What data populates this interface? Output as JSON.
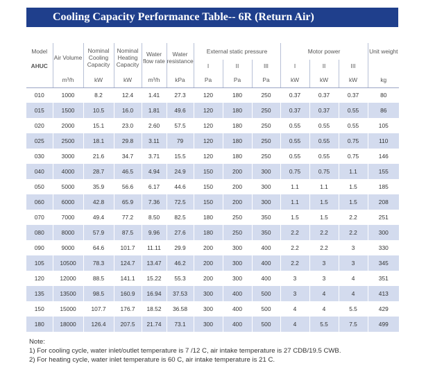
{
  "title": "Cooling Capacity Performance Table-- 6R (Return Air)",
  "header": {
    "model": "Model",
    "model_sub": "AHUC",
    "air_volume": "Air Volume",
    "air_volume_unit": "m³/h",
    "nominal_cooling": "Nominal Cooling Capacity",
    "nominal_cooling_unit": "kW",
    "nominal_heating": "Nominal Heating Capacity",
    "nominal_heating_unit": "kW",
    "water_flow": "Water flow rate",
    "water_flow_unit": "m³/h",
    "water_resistance": "Water resistance",
    "water_resistance_unit": "kPa",
    "esp": "External static pressure",
    "esp_levels": [
      "I",
      "II",
      "III"
    ],
    "esp_unit": "Pa",
    "motor": "Motor power",
    "motor_levels": [
      "I",
      "II",
      "III"
    ],
    "motor_unit": "kW",
    "weight": "Unit weight",
    "weight_unit": "kg"
  },
  "rows": [
    [
      "010",
      "1000",
      "8.2",
      "12.4",
      "1.41",
      "27.3",
      "120",
      "180",
      "250",
      "0.37",
      "0.37",
      "0.37",
      "80"
    ],
    [
      "015",
      "1500",
      "10.5",
      "16.0",
      "1.81",
      "49.6",
      "120",
      "180",
      "250",
      "0.37",
      "0.37",
      "0.55",
      "86"
    ],
    [
      "020",
      "2000",
      "15.1",
      "23.0",
      "2.60",
      "57.5",
      "120",
      "180",
      "250",
      "0.55",
      "0.55",
      "0.55",
      "105"
    ],
    [
      "025",
      "2500",
      "18.1",
      "29.8",
      "3.11",
      "79",
      "120",
      "180",
      "250",
      "0.55",
      "0.55",
      "0.75",
      "110"
    ],
    [
      "030",
      "3000",
      "21.6",
      "34.7",
      "3.71",
      "15.5",
      "120",
      "180",
      "250",
      "0.55",
      "0.55",
      "0.75",
      "146"
    ],
    [
      "040",
      "4000",
      "28.7",
      "46.5",
      "4.94",
      "24.9",
      "150",
      "200",
      "300",
      "0.75",
      "0.75",
      "1.1",
      "155"
    ],
    [
      "050",
      "5000",
      "35.9",
      "56.6",
      "6.17",
      "44.6",
      "150",
      "200",
      "300",
      "1.1",
      "1.1",
      "1.5",
      "185"
    ],
    [
      "060",
      "6000",
      "42.8",
      "65.9",
      "7.36",
      "72.5",
      "150",
      "200",
      "300",
      "1.1",
      "1.5",
      "1.5",
      "208"
    ],
    [
      "070",
      "7000",
      "49.4",
      "77.2",
      "8.50",
      "82.5",
      "180",
      "250",
      "350",
      "1.5",
      "1.5",
      "2.2",
      "251"
    ],
    [
      "080",
      "8000",
      "57.9",
      "87.5",
      "9.96",
      "27.6",
      "180",
      "250",
      "350",
      "2.2",
      "2.2",
      "2.2",
      "300"
    ],
    [
      "090",
      "9000",
      "64.6",
      "101.7",
      "11.11",
      "29.9",
      "200",
      "300",
      "400",
      "2.2",
      "2.2",
      "3",
      "330"
    ],
    [
      "105",
      "10500",
      "78.3",
      "124.7",
      "13.47",
      "46.2",
      "200",
      "300",
      "400",
      "2.2",
      "3",
      "3",
      "345"
    ],
    [
      "120",
      "12000",
      "88.5",
      "141.1",
      "15.22",
      "55.3",
      "200",
      "300",
      "400",
      "3",
      "3",
      "4",
      "351"
    ],
    [
      "135",
      "13500",
      "98.5",
      "160.9",
      "16.94",
      "37.53",
      "300",
      "400",
      "500",
      "3",
      "4",
      "4",
      "413"
    ],
    [
      "150",
      "15000",
      "107.7",
      "176.7",
      "18.52",
      "36.58",
      "300",
      "400",
      "500",
      "4",
      "4",
      "5.5",
      "429"
    ],
    [
      "180",
      "18000",
      "126.4",
      "207.5",
      "21.74",
      "73.1",
      "300",
      "400",
      "500",
      "4",
      "5.5",
      "7.5",
      "499"
    ]
  ],
  "notes": {
    "label": "Note:",
    "items": [
      "1) For cooling cycle, water inlet/outlet temperature is 7 /12 C, air intake temperature is 27 CDB/19.5 CWB.",
      "2) For heating cycle, water inlet temperature is 60 C, air intake temperature is 21 C."
    ]
  }
}
